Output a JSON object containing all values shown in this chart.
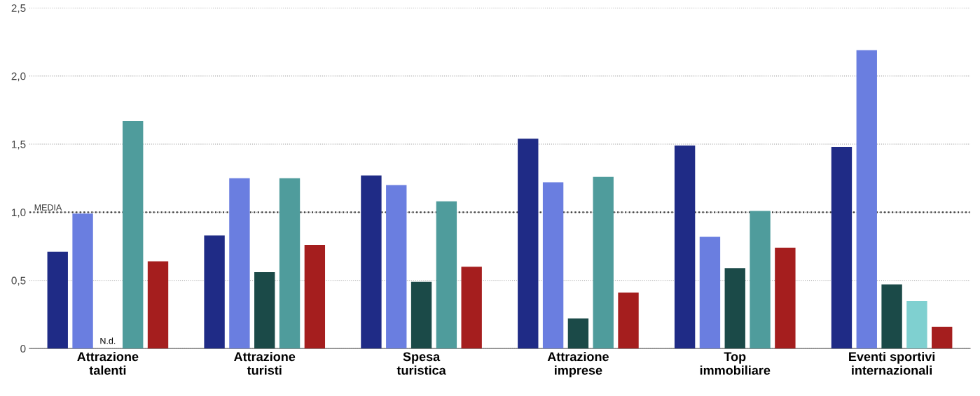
{
  "chart_data": {
    "type": "bar",
    "categories": [
      "Attrazione\ntalenti",
      "Attrazione\nturisti",
      "Spesa\nturistica",
      "Attrazione\nimprese",
      "Top\nimmobiliare",
      "Eventi sportivi\ninternazionali"
    ],
    "series": [
      {
        "color": "#1f2b86",
        "values": [
          0.71,
          0.83,
          1.27,
          1.54,
          1.49,
          1.48
        ]
      },
      {
        "color": "#6a7ee0",
        "values": [
          0.99,
          1.25,
          1.2,
          1.22,
          0.82,
          2.19
        ]
      },
      {
        "color": "#1b4a48",
        "values": [
          null,
          0.56,
          0.49,
          0.22,
          0.59,
          0.47
        ]
      },
      {
        "color": "#4f9c9c",
        "colors": [
          "#4f9c9c",
          "#4f9c9c",
          "#4f9c9c",
          "#4f9c9c",
          "#4f9c9c",
          "#7fd0d0"
        ],
        "values": [
          1.67,
          1.25,
          1.08,
          1.26,
          1.01,
          0.35
        ]
      },
      {
        "color": "#a51e1e",
        "values": [
          0.64,
          0.76,
          0.6,
          0.41,
          0.74,
          0.16
        ]
      }
    ],
    "annotations": [
      "N.d."
    ],
    "ref_lines": [
      {
        "axis": "y",
        "value": 1.0,
        "label": "MEDIA",
        "color": "#333333",
        "line_style": "dotted"
      }
    ],
    "ylim": [
      0,
      2.5
    ],
    "yticks": [
      0,
      {
        "value": 0.5,
        "label": "0,5"
      },
      {
        "value": 1.0,
        "label": "1,0"
      },
      {
        "value": 1.5,
        "label": "1,5"
      },
      {
        "value": 2.0,
        "label": "2,0"
      },
      {
        "value": 2.5,
        "label": "2,5"
      }
    ],
    "grid": "y"
  }
}
